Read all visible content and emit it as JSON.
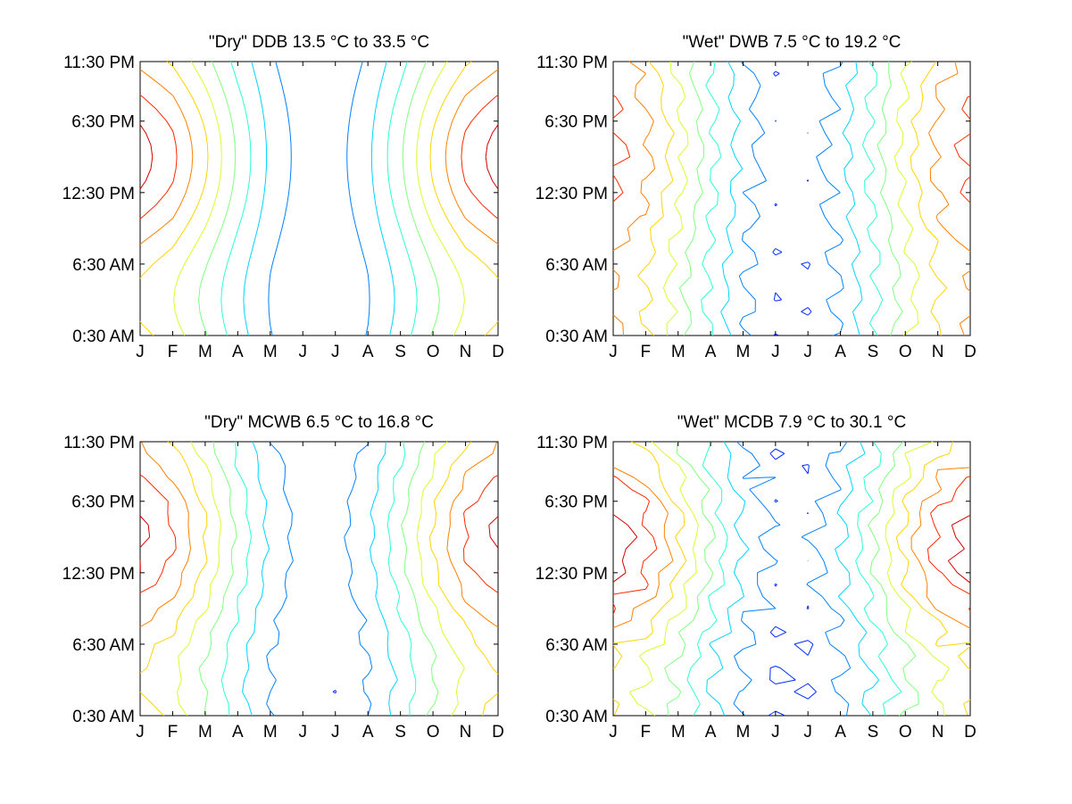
{
  "chart_data": [
    {
      "type": "contour",
      "title": "\"Dry\" DDB  13.5 °C to  33.5 °C",
      "xlabel": "",
      "ylabel": "",
      "x_ticks": [
        "J",
        "F",
        "M",
        "A",
        "M",
        "J",
        "J",
        "A",
        "S",
        "O",
        "N",
        "D"
      ],
      "y_ticks": [
        "0:30 AM",
        "6:30 AM",
        "12:30 PM",
        "6:30 PM",
        "11:30 PM"
      ],
      "zlim": [
        13.5,
        33.5
      ],
      "levels": 11,
      "colormap": "jet"
    },
    {
      "type": "contour",
      "title": "\"Wet\" DWB   7.5 °C to  19.2 °C",
      "xlabel": "",
      "ylabel": "",
      "x_ticks": [
        "J",
        "F",
        "M",
        "A",
        "M",
        "J",
        "J",
        "A",
        "S",
        "O",
        "N",
        "D"
      ],
      "y_ticks": [
        "0:30 AM",
        "6:30 AM",
        "12:30 PM",
        "6:30 PM",
        "11:30 PM"
      ],
      "zlim": [
        7.5,
        19.2
      ],
      "levels": 11,
      "colormap": "jet"
    },
    {
      "type": "contour",
      "title": "\"Dry\" MCWB   6.5 °C to  16.8 °C",
      "xlabel": "",
      "ylabel": "",
      "x_ticks": [
        "J",
        "F",
        "M",
        "A",
        "M",
        "J",
        "J",
        "A",
        "S",
        "O",
        "N",
        "D"
      ],
      "y_ticks": [
        "0:30 AM",
        "6:30 AM",
        "12:30 PM",
        "6:30 PM",
        "11:30 PM"
      ],
      "zlim": [
        6.5,
        16.8
      ],
      "levels": 11,
      "colormap": "jet"
    },
    {
      "type": "contour",
      "title": "\"Wet\" MCDB   7.9 °C to  30.1 °C",
      "xlabel": "",
      "ylabel": "",
      "x_ticks": [
        "J",
        "F",
        "M",
        "A",
        "M",
        "J",
        "J",
        "A",
        "S",
        "O",
        "N",
        "D"
      ],
      "y_ticks": [
        "0:30 AM",
        "6:30 AM",
        "12:30 PM",
        "6:30 PM",
        "11:30 PM"
      ],
      "zlim": [
        7.9,
        30.1
      ],
      "levels": 11,
      "colormap": "jet"
    }
  ]
}
